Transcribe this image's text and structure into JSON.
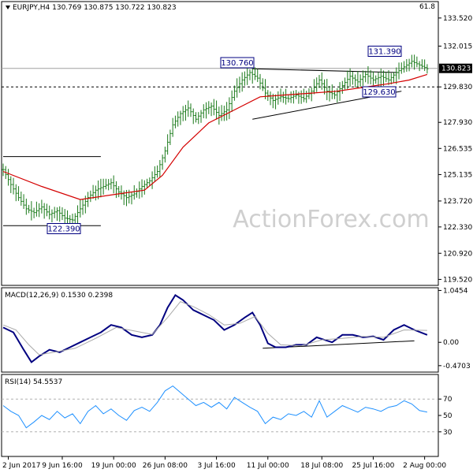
{
  "chart_data": [
    {
      "type": "ohlc",
      "header": "EURJPY,H4  130.769 130.875 130.722 130.823",
      "top_right_value": "61.8",
      "watermark": "ActionForex.com",
      "ylim": [
        119.2,
        134.4
      ],
      "yticks": [
        "133.520",
        "132.015",
        "130.823",
        "129.830",
        "127.930",
        "126.535",
        "125.135",
        "123.720",
        "122.330",
        "120.920",
        "119.520"
      ],
      "ytick_values": [
        133.52,
        132.015,
        130.823,
        129.83,
        127.93,
        126.535,
        125.135,
        123.72,
        122.33,
        120.92,
        119.52
      ],
      "current_price": "130.823",
      "annotations": [
        {
          "label": "130.760",
          "value": 130.76
        },
        {
          "label": "131.390",
          "value": 131.39
        },
        {
          "label": "129.630",
          "value": 129.63
        },
        {
          "label": "122.390",
          "value": 122.39
        }
      ],
      "levels": [
        {
          "value": 129.83,
          "style": "dashed"
        },
        {
          "value": 130.823,
          "style": "solid"
        }
      ],
      "close_path": [
        [
          0,
          125.4
        ],
        [
          3,
          124.6
        ],
        [
          6,
          123.9
        ],
        [
          9,
          123.3
        ],
        [
          12,
          123.1
        ],
        [
          15,
          123.4
        ],
        [
          18,
          123.0
        ],
        [
          21,
          123.2
        ],
        [
          24,
          122.8
        ],
        [
          27,
          122.7
        ],
        [
          30,
          123.3
        ],
        [
          33,
          123.9
        ],
        [
          36,
          124.3
        ],
        [
          39,
          124.5
        ],
        [
          42,
          124.7
        ],
        [
          45,
          124.2
        ],
        [
          48,
          123.9
        ],
        [
          51,
          124.1
        ],
        [
          54,
          124.5
        ],
        [
          57,
          124.8
        ],
        [
          60,
          125.3
        ],
        [
          63,
          126.4
        ],
        [
          66,
          127.8
        ],
        [
          69,
          128.4
        ],
        [
          72,
          128.7
        ],
        [
          75,
          128.1
        ],
        [
          78,
          128.6
        ],
        [
          81,
          128.8
        ],
        [
          84,
          128.3
        ],
        [
          87,
          128.6
        ],
        [
          90,
          129.6
        ],
        [
          93,
          130.2
        ],
        [
          96,
          130.6
        ],
        [
          99,
          130.3
        ],
        [
          102,
          129.5
        ],
        [
          105,
          129.1
        ],
        [
          108,
          129.3
        ],
        [
          111,
          129.2
        ],
        [
          114,
          129.4
        ],
        [
          117,
          129.2
        ],
        [
          120,
          129.6
        ],
        [
          123,
          130.2
        ],
        [
          126,
          129.6
        ],
        [
          129,
          129.4
        ],
        [
          132,
          129.9
        ],
        [
          135,
          130.4
        ],
        [
          138,
          130.1
        ],
        [
          141,
          130.5
        ],
        [
          144,
          130.2
        ],
        [
          147,
          130.4
        ],
        [
          150,
          130.2
        ],
        [
          153,
          130.6
        ],
        [
          156,
          130.9
        ],
        [
          159,
          131.2
        ],
        [
          162,
          131.0
        ],
        [
          165,
          130.8
        ]
      ],
      "ma_path": [
        [
          0,
          125.3
        ],
        [
          15,
          124.5
        ],
        [
          30,
          123.8
        ],
        [
          45,
          124.1
        ],
        [
          55,
          124.3
        ],
        [
          62,
          125.1
        ],
        [
          70,
          126.6
        ],
        [
          80,
          127.9
        ],
        [
          90,
          128.6
        ],
        [
          100,
          129.3
        ],
        [
          110,
          129.4
        ],
        [
          120,
          129.5
        ],
        [
          130,
          129.6
        ],
        [
          140,
          129.8
        ],
        [
          150,
          130.0
        ],
        [
          158,
          130.2
        ],
        [
          165,
          130.5
        ]
      ],
      "trendlines": [
        {
          "points": [
            [
              0,
              126.1
            ],
            [
              38,
              126.1
            ]
          ],
          "style": "solid"
        },
        {
          "points": [
            [
              0,
              122.4
            ],
            [
              38,
              122.4
            ]
          ],
          "style": "solid"
        },
        {
          "points": [
            [
              97,
              130.8
            ],
            [
              154,
              130.6
            ]
          ],
          "style": "solid"
        },
        {
          "points": [
            [
              97,
              128.1
            ],
            [
              155,
              129.6
            ]
          ],
          "style": "solid"
        }
      ]
    },
    {
      "type": "line",
      "title": "MACD(12,26,9) 0.1530 0.2398",
      "ylim": [
        -0.6,
        1.1
      ],
      "yticks": [
        "1.0454",
        "0.00",
        "-0.4703"
      ],
      "ytick_values": [
        1.0454,
        0.0,
        -0.4703
      ],
      "series": [
        {
          "name": "MACD",
          "color": "#000080",
          "points": [
            [
              0,
              0.3
            ],
            [
              4,
              0.2
            ],
            [
              8,
              -0.15
            ],
            [
              11,
              -0.4
            ],
            [
              14,
              -0.28
            ],
            [
              18,
              -0.15
            ],
            [
              22,
              -0.2
            ],
            [
              26,
              -0.1
            ],
            [
              30,
              0.0
            ],
            [
              34,
              0.1
            ],
            [
              38,
              0.2
            ],
            [
              42,
              0.35
            ],
            [
              46,
              0.3
            ],
            [
              50,
              0.15
            ],
            [
              54,
              0.1
            ],
            [
              58,
              0.15
            ],
            [
              61,
              0.35
            ],
            [
              64,
              0.7
            ],
            [
              67,
              0.95
            ],
            [
              70,
              0.85
            ],
            [
              74,
              0.65
            ],
            [
              78,
              0.55
            ],
            [
              82,
              0.45
            ],
            [
              86,
              0.25
            ],
            [
              90,
              0.35
            ],
            [
              94,
              0.5
            ],
            [
              97,
              0.6
            ],
            [
              100,
              0.35
            ],
            [
              103,
              -0.02
            ],
            [
              106,
              -0.1
            ],
            [
              110,
              -0.1
            ],
            [
              114,
              -0.05
            ],
            [
              118,
              -0.05
            ],
            [
              122,
              0.1
            ],
            [
              125,
              0.05
            ],
            [
              128,
              0.0
            ],
            [
              132,
              0.15
            ],
            [
              136,
              0.15
            ],
            [
              140,
              0.1
            ],
            [
              144,
              0.12
            ],
            [
              148,
              0.05
            ],
            [
              152,
              0.25
            ],
            [
              156,
              0.35
            ],
            [
              160,
              0.25
            ],
            [
              165,
              0.15
            ]
          ]
        },
        {
          "name": "Signal",
          "color": "#a9a9a9",
          "points": [
            [
              0,
              0.35
            ],
            [
              5,
              0.25
            ],
            [
              10,
              -0.05
            ],
            [
              14,
              -0.25
            ],
            [
              20,
              -0.2
            ],
            [
              28,
              -0.12
            ],
            [
              36,
              0.08
            ],
            [
              44,
              0.3
            ],
            [
              52,
              0.22
            ],
            [
              58,
              0.16
            ],
            [
              64,
              0.5
            ],
            [
              69,
              0.82
            ],
            [
              74,
              0.72
            ],
            [
              80,
              0.56
            ],
            [
              86,
              0.35
            ],
            [
              92,
              0.38
            ],
            [
              98,
              0.52
            ],
            [
              103,
              0.18
            ],
            [
              108,
              -0.05
            ],
            [
              116,
              -0.07
            ],
            [
              124,
              0.05
            ],
            [
              132,
              0.08
            ],
            [
              140,
              0.12
            ],
            [
              148,
              0.1
            ],
            [
              156,
              0.25
            ],
            [
              165,
              0.24
            ]
          ]
        }
      ],
      "trendlines": [
        {
          "points": [
            [
              101,
              -0.12
            ],
            [
              160,
              0.03
            ]
          ],
          "style": "solid"
        }
      ]
    },
    {
      "type": "line",
      "title": "RSI(14) 54.5537",
      "ylim": [
        0,
        100
      ],
      "yticks": [
        "100",
        "70",
        "50",
        "30",
        "0"
      ],
      "ytick_values": [
        100,
        70,
        50,
        30,
        0
      ],
      "levels": [
        {
          "value": 70,
          "style": "dashed"
        },
        {
          "value": 30,
          "style": "dashed"
        }
      ],
      "series": [
        {
          "name": "RSI",
          "color": "#1e90ff",
          "points": [
            [
              0,
              62
            ],
            [
              3,
              55
            ],
            [
              6,
              50
            ],
            [
              9,
              35
            ],
            [
              12,
              42
            ],
            [
              15,
              50
            ],
            [
              18,
              45
            ],
            [
              21,
              55
            ],
            [
              24,
              47
            ],
            [
              27,
              52
            ],
            [
              30,
              40
            ],
            [
              33,
              55
            ],
            [
              36,
              62
            ],
            [
              39,
              52
            ],
            [
              42,
              58
            ],
            [
              45,
              50
            ],
            [
              48,
              44
            ],
            [
              51,
              56
            ],
            [
              54,
              60
            ],
            [
              57,
              55
            ],
            [
              60,
              66
            ],
            [
              63,
              80
            ],
            [
              66,
              86
            ],
            [
              69,
              78
            ],
            [
              72,
              70
            ],
            [
              75,
              62
            ],
            [
              78,
              66
            ],
            [
              81,
              60
            ],
            [
              84,
              66
            ],
            [
              87,
              58
            ],
            [
              90,
              72
            ],
            [
              93,
              66
            ],
            [
              96,
              60
            ],
            [
              99,
              55
            ],
            [
              102,
              40
            ],
            [
              105,
              48
            ],
            [
              108,
              45
            ],
            [
              111,
              52
            ],
            [
              114,
              50
            ],
            [
              117,
              55
            ],
            [
              120,
              48
            ],
            [
              123,
              68
            ],
            [
              126,
              48
            ],
            [
              129,
              55
            ],
            [
              132,
              62
            ],
            [
              135,
              58
            ],
            [
              138,
              54
            ],
            [
              141,
              60
            ],
            [
              144,
              58
            ],
            [
              147,
              55
            ],
            [
              150,
              60
            ],
            [
              153,
              62
            ],
            [
              156,
              68
            ],
            [
              159,
              64
            ],
            [
              162,
              56
            ],
            [
              165,
              54
            ]
          ]
        }
      ]
    }
  ],
  "x_axis": {
    "labels": [
      "2 Jun 2017",
      "9 Jun 16:00",
      "19 Jun 00:00",
      "26 Jun 08:00",
      "3 Jul 16:00",
      "11 Jul 00:00",
      "18 Jul 08:00",
      "25 Jul 16:00",
      "2 Aug 00:00"
    ],
    "positions": [
      2,
      23,
      43,
      63,
      83,
      103,
      124,
      144,
      164
    ]
  }
}
